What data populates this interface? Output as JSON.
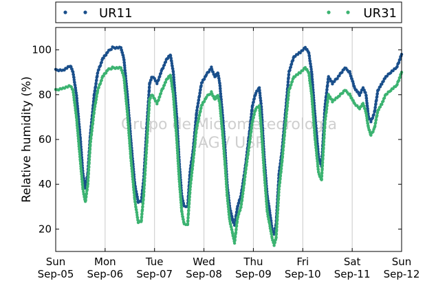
{
  "chart_data": {
    "type": "scatter",
    "title": "",
    "xlabel": "",
    "ylabel": "Relative humidity (%)",
    "ylim": [
      10,
      110
    ],
    "xlim": [
      0,
      7
    ],
    "yticks": [
      20,
      40,
      60,
      80,
      100
    ],
    "x_ticks": [
      {
        "x": 0,
        "day": "Sun",
        "date": "Sep-05"
      },
      {
        "x": 1,
        "day": "Mon",
        "date": "Sep-06"
      },
      {
        "x": 2,
        "day": "Tue",
        "date": "Sep-07"
      },
      {
        "x": 3,
        "day": "Wed",
        "date": "Sep-08"
      },
      {
        "x": 4,
        "day": "Thu",
        "date": "Sep-09"
      },
      {
        "x": 5,
        "day": "Fri",
        "date": "Sep-10"
      },
      {
        "x": 6,
        "day": "Sat",
        "date": "Sep-11"
      },
      {
        "x": 7,
        "day": "Sun",
        "date": "Sep-12"
      }
    ],
    "grid": "vertical lines at day ticks",
    "legend_position": "top, above plot",
    "watermark": [
      "Grupo de Micrometeorologia",
      "IAG / USP"
    ],
    "series": [
      {
        "name": "UR11",
        "color": "#1a4f8b",
        "points": [
          [
            0.0,
            91
          ],
          [
            0.15,
            91
          ],
          [
            0.3,
            93
          ],
          [
            0.35,
            90
          ],
          [
            0.42,
            80
          ],
          [
            0.5,
            60
          ],
          [
            0.55,
            45
          ],
          [
            0.6,
            38
          ],
          [
            0.65,
            45
          ],
          [
            0.7,
            62
          ],
          [
            0.78,
            80
          ],
          [
            0.85,
            90
          ],
          [
            0.95,
            96
          ],
          [
            1.05,
            99
          ],
          [
            1.15,
            101
          ],
          [
            1.32,
            101
          ],
          [
            1.38,
            96
          ],
          [
            1.45,
            80
          ],
          [
            1.52,
            60
          ],
          [
            1.6,
            40
          ],
          [
            1.67,
            32
          ],
          [
            1.73,
            32
          ],
          [
            1.78,
            42
          ],
          [
            1.85,
            68
          ],
          [
            1.9,
            85
          ],
          [
            1.95,
            88
          ],
          [
            2.0,
            87
          ],
          [
            2.05,
            85
          ],
          [
            2.15,
            91
          ],
          [
            2.25,
            96
          ],
          [
            2.32,
            98
          ],
          [
            2.38,
            90
          ],
          [
            2.45,
            70
          ],
          [
            2.5,
            50
          ],
          [
            2.55,
            35
          ],
          [
            2.6,
            30
          ],
          [
            2.67,
            30
          ],
          [
            2.72,
            46
          ],
          [
            2.78,
            55
          ],
          [
            2.85,
            72
          ],
          [
            2.95,
            85
          ],
          [
            3.05,
            89
          ],
          [
            3.15,
            92
          ],
          [
            3.22,
            88
          ],
          [
            3.28,
            90
          ],
          [
            3.32,
            85
          ],
          [
            3.38,
            70
          ],
          [
            3.43,
            55
          ],
          [
            3.47,
            40
          ],
          [
            3.52,
            30
          ],
          [
            3.58,
            24
          ],
          [
            3.62,
            22
          ],
          [
            3.68,
            30
          ],
          [
            3.75,
            35
          ],
          [
            3.8,
            42
          ],
          [
            3.85,
            50
          ],
          [
            3.92,
            63
          ],
          [
            3.98,
            75
          ],
          [
            4.05,
            81
          ],
          [
            4.12,
            83
          ],
          [
            4.16,
            75
          ],
          [
            4.22,
            52
          ],
          [
            4.28,
            35
          ],
          [
            4.33,
            28
          ],
          [
            4.38,
            20
          ],
          [
            4.42,
            18
          ],
          [
            4.46,
            22
          ],
          [
            4.52,
            45
          ],
          [
            4.58,
            55
          ],
          [
            4.65,
            72
          ],
          [
            4.72,
            90
          ],
          [
            4.82,
            97
          ],
          [
            4.95,
            99
          ],
          [
            5.05,
            101
          ],
          [
            5.12,
            99
          ],
          [
            5.18,
            90
          ],
          [
            5.25,
            70
          ],
          [
            5.32,
            52
          ],
          [
            5.38,
            48
          ],
          [
            5.45,
            75
          ],
          [
            5.52,
            88
          ],
          [
            5.6,
            85
          ],
          [
            5.72,
            88
          ],
          [
            5.85,
            92
          ],
          [
            5.95,
            90
          ],
          [
            6.05,
            83
          ],
          [
            6.15,
            80
          ],
          [
            6.22,
            83
          ],
          [
            6.28,
            80
          ],
          [
            6.33,
            70
          ],
          [
            6.38,
            68
          ],
          [
            6.45,
            72
          ],
          [
            6.52,
            82
          ],
          [
            6.6,
            85
          ],
          [
            6.68,
            88
          ],
          [
            6.78,
            90
          ],
          [
            6.9,
            92
          ],
          [
            7.0,
            98
          ]
        ]
      },
      {
        "name": "UR31",
        "color": "#3cb371",
        "points": [
          [
            0.0,
            82
          ],
          [
            0.15,
            83
          ],
          [
            0.3,
            84
          ],
          [
            0.35,
            82
          ],
          [
            0.42,
            70
          ],
          [
            0.5,
            50
          ],
          [
            0.55,
            38
          ],
          [
            0.6,
            32
          ],
          [
            0.65,
            40
          ],
          [
            0.7,
            58
          ],
          [
            0.78,
            73
          ],
          [
            0.85,
            82
          ],
          [
            0.95,
            88
          ],
          [
            1.05,
            91
          ],
          [
            1.15,
            92
          ],
          [
            1.32,
            92
          ],
          [
            1.38,
            88
          ],
          [
            1.45,
            72
          ],
          [
            1.52,
            52
          ],
          [
            1.6,
            33
          ],
          [
            1.67,
            23
          ],
          [
            1.73,
            23
          ],
          [
            1.78,
            35
          ],
          [
            1.85,
            60
          ],
          [
            1.9,
            78
          ],
          [
            1.95,
            80
          ],
          [
            2.0,
            78
          ],
          [
            2.05,
            76
          ],
          [
            2.15,
            82
          ],
          [
            2.25,
            87
          ],
          [
            2.32,
            89
          ],
          [
            2.38,
            80
          ],
          [
            2.45,
            60
          ],
          [
            2.5,
            42
          ],
          [
            2.55,
            28
          ],
          [
            2.6,
            22
          ],
          [
            2.67,
            22
          ],
          [
            2.72,
            38
          ],
          [
            2.78,
            50
          ],
          [
            2.85,
            65
          ],
          [
            2.95,
            75
          ],
          [
            3.05,
            79
          ],
          [
            3.15,
            81
          ],
          [
            3.22,
            78
          ],
          [
            3.28,
            80
          ],
          [
            3.32,
            76
          ],
          [
            3.38,
            62
          ],
          [
            3.43,
            48
          ],
          [
            3.47,
            35
          ],
          [
            3.52,
            24
          ],
          [
            3.58,
            18
          ],
          [
            3.62,
            14
          ],
          [
            3.68,
            25
          ],
          [
            3.75,
            30
          ],
          [
            3.8,
            38
          ],
          [
            3.85,
            47
          ],
          [
            3.92,
            58
          ],
          [
            3.98,
            68
          ],
          [
            4.05,
            74
          ],
          [
            4.12,
            75
          ],
          [
            4.16,
            65
          ],
          [
            4.22,
            45
          ],
          [
            4.28,
            28
          ],
          [
            4.33,
            22
          ],
          [
            4.38,
            16
          ],
          [
            4.42,
            13
          ],
          [
            4.46,
            16
          ],
          [
            4.52,
            38
          ],
          [
            4.58,
            50
          ],
          [
            4.65,
            67
          ],
          [
            4.72,
            82
          ],
          [
            4.82,
            88
          ],
          [
            4.95,
            90
          ],
          [
            5.05,
            92
          ],
          [
            5.12,
            90
          ],
          [
            5.18,
            80
          ],
          [
            5.25,
            60
          ],
          [
            5.32,
            45
          ],
          [
            5.38,
            42
          ],
          [
            5.45,
            68
          ],
          [
            5.52,
            80
          ],
          [
            5.6,
            77
          ],
          [
            5.72,
            79
          ],
          [
            5.85,
            82
          ],
          [
            5.95,
            80
          ],
          [
            6.05,
            76
          ],
          [
            6.15,
            74
          ],
          [
            6.22,
            76
          ],
          [
            6.28,
            72
          ],
          [
            6.33,
            65
          ],
          [
            6.38,
            62
          ],
          [
            6.45,
            65
          ],
          [
            6.52,
            73
          ],
          [
            6.6,
            76
          ],
          [
            6.68,
            80
          ],
          [
            6.78,
            82
          ],
          [
            6.9,
            84
          ],
          [
            7.0,
            90
          ]
        ]
      }
    ]
  }
}
